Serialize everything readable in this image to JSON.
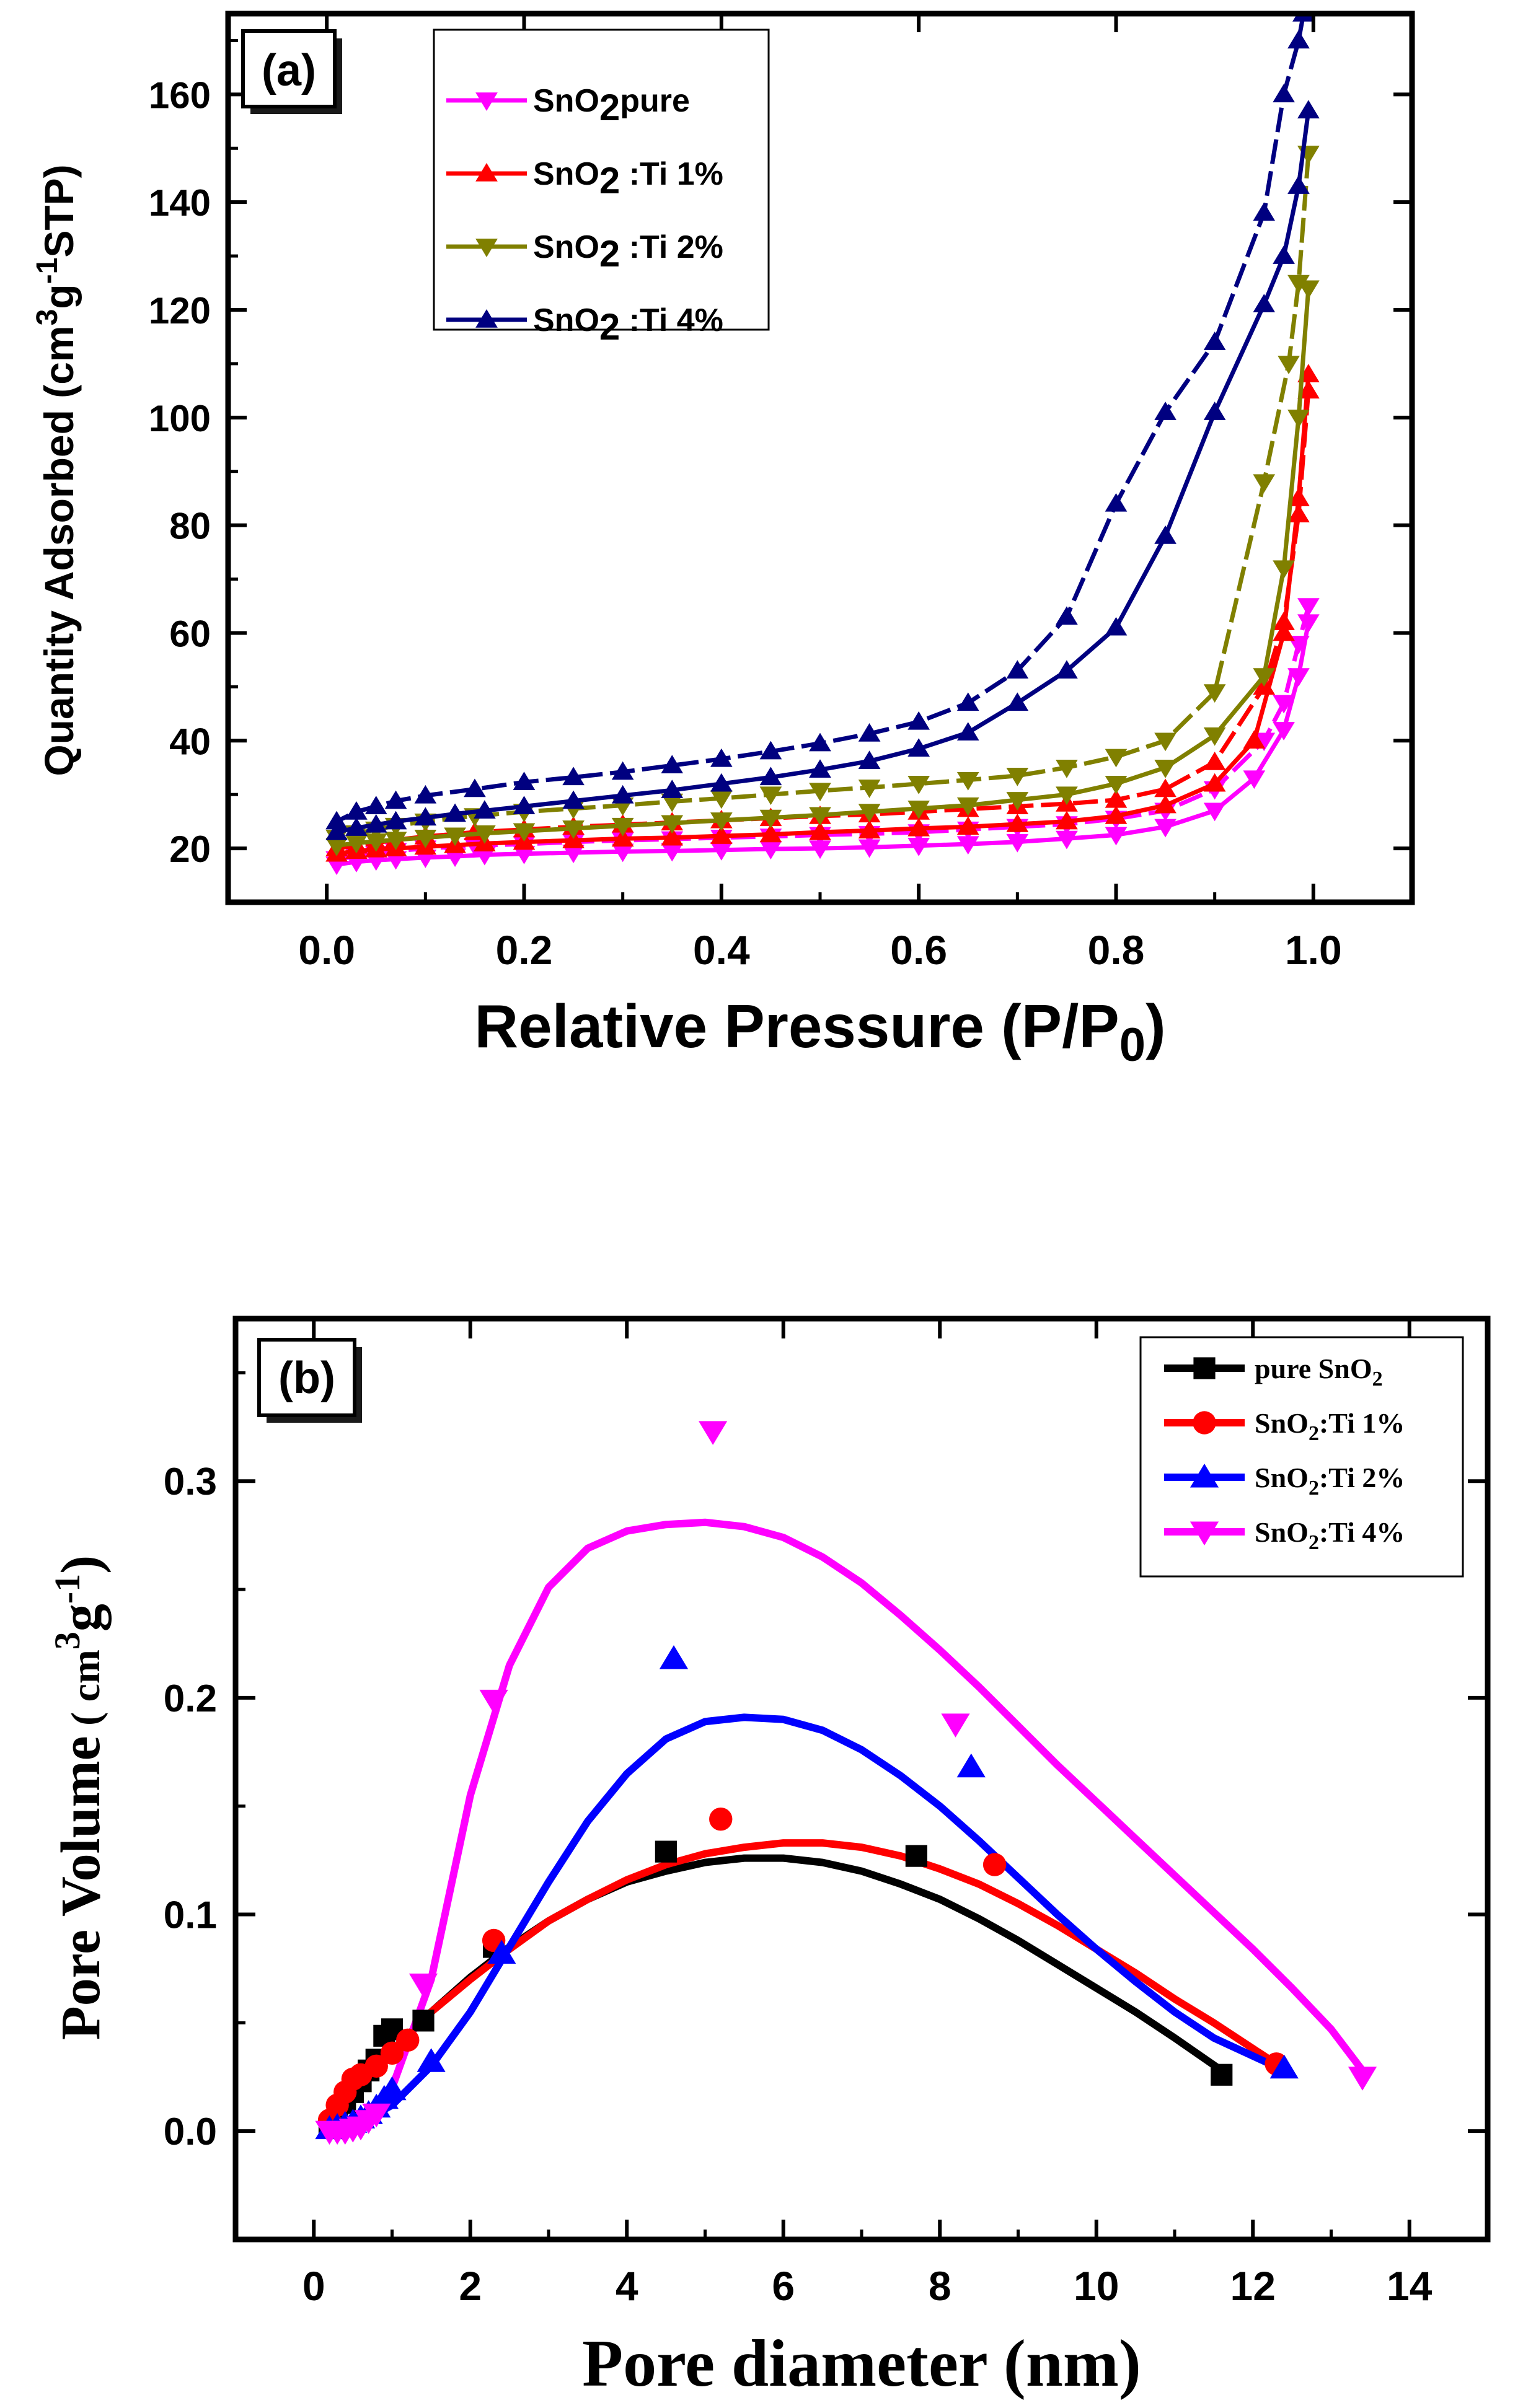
{
  "chart_data": [
    {
      "panel": "a",
      "type": "line",
      "panel_label": "(a)",
      "xlabel": "Relative Pressure (P/P",
      "xlabel_sub": "0",
      "xlabel_end": ")",
      "ylabel_parts": [
        "Quantity Adsorbed (cm",
        "3",
        "g",
        "-1",
        "STP)"
      ],
      "xlim": [
        -0.1,
        1.1
      ],
      "ylim": [
        10,
        175
      ],
      "xticks": [
        0.0,
        0.2,
        0.4,
        0.6,
        0.8,
        1.0
      ],
      "xtick_labels": [
        "0.0",
        "0.2",
        "0.4",
        "0.6",
        "0.8",
        "1.0"
      ],
      "yticks": [
        20,
        40,
        60,
        80,
        100,
        120,
        140,
        160
      ],
      "ytick_labels": [
        "20",
        "40",
        "60",
        "80",
        "100",
        "120",
        "140",
        "160"
      ],
      "legend_position": "top-left",
      "series": [
        {
          "name": "SnO2pure",
          "label_parts": [
            "SnO",
            "2",
            "pure"
          ],
          "color": "#ff00ff",
          "marker": "triangle-down",
          "adsorption": {
            "x": [
              0.01,
              0.03,
              0.05,
              0.07,
              0.1,
              0.13,
              0.16,
              0.2,
              0.25,
              0.3,
              0.35,
              0.4,
              0.45,
              0.5,
              0.55,
              0.6,
              0.65,
              0.7,
              0.75,
              0.8,
              0.85,
              0.9,
              0.94,
              0.97,
              0.985,
              0.995
            ],
            "y": [
              17,
              17.5,
              17.8,
              18,
              18.3,
              18.5,
              18.8,
              19,
              19.2,
              19.4,
              19.5,
              19.7,
              19.9,
              20,
              20.2,
              20.5,
              20.8,
              21.2,
              21.8,
              22.5,
              24,
              27,
              33,
              42,
              52,
              62
            ]
          },
          "desorption": {
            "x": [
              0.995,
              0.985,
              0.97,
              0.95,
              0.9,
              0.85,
              0.8,
              0.75,
              0.7,
              0.65,
              0.6,
              0.55,
              0.5,
              0.45,
              0.4,
              0.35,
              0.3,
              0.25,
              0.2,
              0.15,
              0.1,
              0.07,
              0.05,
              0.03,
              0.01
            ],
            "y": [
              65,
              58,
              47,
              40,
              31,
              27,
              25.5,
              24.5,
              24,
              23.5,
              23,
              22.7,
              22.5,
              22.2,
              22,
              21.7,
              21.5,
              21.2,
              20.8,
              20.5,
              20,
              19.5,
              19,
              18.5,
              18
            ]
          }
        },
        {
          "name": "SnO2 :Ti 1%",
          "label_parts": [
            "SnO",
            "2",
            " :Ti 1%"
          ],
          "color": "#ff0000",
          "marker": "triangle-up",
          "adsorption": {
            "x": [
              0.01,
              0.03,
              0.05,
              0.07,
              0.1,
              0.13,
              0.16,
              0.2,
              0.25,
              0.3,
              0.35,
              0.4,
              0.45,
              0.5,
              0.55,
              0.6,
              0.65,
              0.7,
              0.75,
              0.8,
              0.85,
              0.9,
              0.94,
              0.97,
              0.985,
              0.995
            ],
            "y": [
              19,
              19.5,
              19.8,
              20,
              20.3,
              20.6,
              20.9,
              21.2,
              21.5,
              21.8,
              22,
              22.3,
              22.6,
              23,
              23.3,
              23.7,
              24,
              24.5,
              25,
              26,
              28,
              32,
              40,
              60,
              85,
              108
            ]
          },
          "desorption": {
            "x": [
              0.995,
              0.985,
              0.97,
              0.95,
              0.9,
              0.85,
              0.8,
              0.75,
              0.7,
              0.65,
              0.6,
              0.55,
              0.5,
              0.45,
              0.4,
              0.35,
              0.3,
              0.25,
              0.2,
              0.15,
              0.1,
              0.07,
              0.05,
              0.03,
              0.01
            ],
            "y": [
              105,
              82,
              62,
              50,
              36,
              31,
              29,
              28.3,
              27.8,
              27.3,
              26.8,
              26.3,
              26,
              25.6,
              25.2,
              24.8,
              24.4,
              24,
              23.5,
              23,
              22.2,
              21.6,
              21,
              20.5,
              20
            ]
          }
        },
        {
          "name": "SnO2 :Ti 2%",
          "label_parts": [
            "SnO",
            "2",
            " :Ti 2%"
          ],
          "color": "#808000",
          "marker": "triangle-down",
          "adsorption": {
            "x": [
              0.01,
              0.03,
              0.05,
              0.07,
              0.1,
              0.13,
              0.16,
              0.2,
              0.25,
              0.3,
              0.35,
              0.4,
              0.45,
              0.5,
              0.55,
              0.6,
              0.65,
              0.7,
              0.75,
              0.8,
              0.85,
              0.9,
              0.95,
              0.97,
              0.985,
              0.995
            ],
            "y": [
              20.5,
              21,
              21.3,
              21.6,
              22,
              22.4,
              22.8,
              23.2,
              23.7,
              24.2,
              24.7,
              25.2,
              25.7,
              26.2,
              26.8,
              27.4,
              28,
              29,
              30,
              32,
              35,
              41,
              52,
              72,
              100,
              124
            ]
          },
          "desorption": {
            "x": [
              0.995,
              0.985,
              0.975,
              0.95,
              0.9,
              0.85,
              0.8,
              0.75,
              0.7,
              0.65,
              0.6,
              0.55,
              0.5,
              0.45,
              0.4,
              0.35,
              0.3,
              0.25,
              0.2,
              0.15,
              0.1,
              0.07,
              0.05,
              0.03,
              0.01
            ],
            "y": [
              149,
              125,
              110,
              88,
              49,
              40,
              37,
              35,
              33.5,
              32.7,
              32,
              31.3,
              30.7,
              30,
              29.3,
              28.7,
              28,
              27.4,
              26.8,
              26,
              25,
              24.2,
              23.5,
              22.8,
              22
            ]
          }
        },
        {
          "name": "SnO2 :Ti 4%",
          "label_parts": [
            "SnO",
            "2",
            " :Ti 4%"
          ],
          "color": "#000080",
          "marker": "triangle-up",
          "adsorption": {
            "x": [
              0.01,
              0.03,
              0.05,
              0.07,
              0.1,
              0.13,
              0.16,
              0.2,
              0.25,
              0.3,
              0.35,
              0.4,
              0.45,
              0.5,
              0.55,
              0.6,
              0.65,
              0.7,
              0.75,
              0.8,
              0.85,
              0.9,
              0.95,
              0.97,
              0.985,
              0.995
            ],
            "y": [
              23,
              23.8,
              24.4,
              25,
              25.7,
              26.4,
              27,
              27.8,
              28.8,
              29.8,
              30.8,
              32,
              33.2,
              34.6,
              36.2,
              38.5,
              41.5,
              47,
              53,
              61,
              78,
              101,
              121,
              130,
              143,
              157
            ]
          },
          "desorption": {
            "x": [
              0.99,
              0.985,
              0.97,
              0.95,
              0.9,
              0.85,
              0.8,
              0.75,
              0.7,
              0.65,
              0.6,
              0.55,
              0.5,
              0.45,
              0.4,
              0.35,
              0.3,
              0.25,
              0.2,
              0.15,
              0.1,
              0.07,
              0.05,
              0.03,
              0.01
            ],
            "y": [
              175,
              170,
              160,
              138,
              114,
              101,
              84,
              63,
              53,
              47,
              43.5,
              41.3,
              39.5,
              38,
              36.6,
              35.4,
              34.2,
              33.2,
              32.3,
              31,
              29.8,
              28.8,
              27.8,
              26.8,
              25
            ]
          }
        }
      ]
    },
    {
      "panel": "b",
      "type": "scatter",
      "panel_label": "(b)",
      "xlabel": "Pore diameter (nm)",
      "ylabel_parts": [
        "Pore Volume",
        " ( cm",
        "3",
        "g",
        "-1",
        ")"
      ],
      "xlim": [
        -1,
        15
      ],
      "ylim": [
        -0.05,
        0.375
      ],
      "xticks": [
        0,
        2,
        4,
        6,
        8,
        10,
        12,
        14
      ],
      "xtick_labels": [
        "0",
        "2",
        "4",
        "6",
        "8",
        "10",
        "12",
        "14"
      ],
      "yticks": [
        0.0,
        0.1,
        0.2,
        0.3
      ],
      "ytick_labels": [
        "0.0",
        "0.1",
        "0.2",
        "0.3"
      ],
      "legend_position": "top-right",
      "series": [
        {
          "name": "pure SnO2",
          "label_parts": [
            "pure SnO",
            "2",
            ""
          ],
          "color": "#000000",
          "marker": "square",
          "points": {
            "x": [
              0.2,
              0.3,
              0.4,
              0.5,
              0.6,
              0.7,
              0.8,
              0.9,
              1.0,
              1.4,
              2.3,
              4.5,
              7.7,
              11.6
            ],
            "y": [
              0.002,
              0.008,
              0.013,
              0.018,
              0.023,
              0.028,
              0.033,
              0.044,
              0.047,
              0.051,
              0.085,
              0.129,
              0.127,
              0.026
            ]
          },
          "fit": {
            "x": [
              0.2,
              0.6,
              1.0,
              1.5,
              2.0,
              2.5,
              3.0,
              3.5,
              4.0,
              4.5,
              5.0,
              5.5,
              6.0,
              6.5,
              7.0,
              7.5,
              8.0,
              8.5,
              9.0,
              9.5,
              10.0,
              10.5,
              11.0,
              11.6
            ],
            "y": [
              0.002,
              0.02,
              0.037,
              0.055,
              0.071,
              0.085,
              0.097,
              0.107,
              0.115,
              0.12,
              0.124,
              0.126,
              0.126,
              0.124,
              0.12,
              0.114,
              0.107,
              0.098,
              0.088,
              0.077,
              0.066,
              0.055,
              0.043,
              0.028
            ]
          }
        },
        {
          "name": "SnO2:Ti 1%",
          "label_parts": [
            "SnO",
            "2",
            ":Ti 1%"
          ],
          "color": "#ff0000",
          "marker": "circle",
          "points": {
            "x": [
              0.2,
              0.3,
              0.4,
              0.5,
              0.6,
              0.8,
              1.0,
              1.2,
              2.3,
              5.2,
              8.7,
              12.3
            ],
            "y": [
              0.005,
              0.012,
              0.018,
              0.024,
              0.026,
              0.03,
              0.036,
              0.042,
              0.088,
              0.144,
              0.123,
              0.031
            ]
          },
          "fit": {
            "x": [
              0.2,
              0.6,
              1.0,
              1.5,
              2.0,
              2.5,
              3.0,
              3.5,
              4.0,
              4.5,
              5.0,
              5.5,
              6.0,
              6.5,
              7.0,
              7.5,
              8.0,
              8.5,
              9.0,
              9.5,
              10.0,
              10.5,
              11.0,
              11.5,
              12.3
            ],
            "y": [
              0.004,
              0.021,
              0.037,
              0.055,
              0.07,
              0.084,
              0.097,
              0.107,
              0.116,
              0.123,
              0.128,
              0.131,
              0.133,
              0.133,
              0.131,
              0.127,
              0.121,
              0.114,
              0.105,
              0.095,
              0.084,
              0.073,
              0.061,
              0.05,
              0.031
            ]
          }
        },
        {
          "name": "SnO2:Ti 2%",
          "label_parts": [
            "SnO",
            "2",
            ":Ti 2%"
          ],
          "color": "#0000ff",
          "marker": "triangle-up",
          "points": {
            "x": [
              0.2,
              0.3,
              0.4,
              0.5,
              0.6,
              0.7,
              0.8,
              0.9,
              1.0,
              1.5,
              2.4,
              4.6,
              8.4,
              12.4
            ],
            "y": [
              0.001,
              0.002,
              0.003,
              0.004,
              0.006,
              0.008,
              0.011,
              0.015,
              0.019,
              0.032,
              0.082,
              0.218,
              0.168,
              0.029
            ]
          },
          "fit": {
            "x": [
              0.2,
              0.6,
              1.0,
              1.5,
              2.0,
              2.5,
              3.0,
              3.5,
              4.0,
              4.5,
              5.0,
              5.5,
              6.0,
              6.5,
              7.0,
              7.5,
              8.0,
              8.5,
              9.0,
              9.5,
              10.0,
              10.5,
              11.0,
              11.5,
              12.4
            ],
            "y": [
              0,
              0.004,
              0.012,
              0.03,
              0.055,
              0.085,
              0.115,
              0.143,
              0.165,
              0.181,
              0.189,
              0.191,
              0.19,
              0.185,
              0.176,
              0.164,
              0.15,
              0.134,
              0.117,
              0.1,
              0.084,
              0.069,
              0.055,
              0.043,
              0.028
            ]
          }
        },
        {
          "name": "SnO2:Ti 4%",
          "label_parts": [
            "SnO",
            "2",
            ":Ti 4%"
          ],
          "color": "#ff00ff",
          "marker": "triangle-down",
          "points": {
            "x": [
              0.2,
              0.3,
              0.4,
              0.5,
              0.6,
              0.7,
              0.8,
              1.4,
              2.3,
              5.1,
              8.2,
              13.4
            ],
            "y": [
              0,
              0,
              0,
              0.001,
              0.002,
              0.005,
              0.008,
              0.068,
              0.199,
              0.323,
              0.188,
              0.025
            ]
          },
          "fit": {
            "x": [
              0.2,
              0.6,
              1.0,
              1.5,
              2.0,
              2.5,
              3.0,
              3.5,
              4.0,
              4.5,
              5.0,
              5.5,
              6.0,
              6.5,
              7.0,
              7.5,
              8.0,
              8.5,
              9.0,
              9.5,
              10.0,
              10.5,
              11.0,
              11.5,
              12.0,
              12.5,
              13.0,
              13.4
            ],
            "y": [
              0,
              0.004,
              0.02,
              0.07,
              0.155,
              0.215,
              0.251,
              0.269,
              0.277,
              0.28,
              0.281,
              0.279,
              0.274,
              0.265,
              0.253,
              0.238,
              0.222,
              0.205,
              0.187,
              0.169,
              0.152,
              0.135,
              0.118,
              0.101,
              0.084,
              0.066,
              0.047,
              0.028
            ]
          }
        }
      ]
    }
  ]
}
